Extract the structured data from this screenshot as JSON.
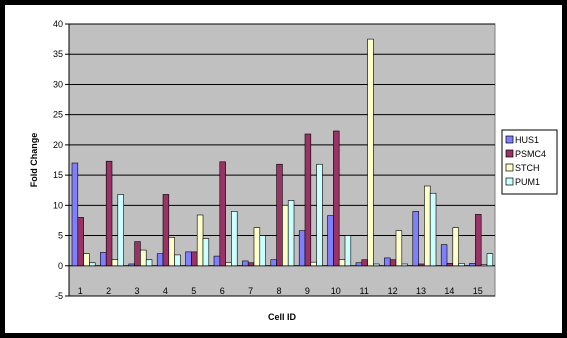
{
  "chart_data": {
    "type": "bar",
    "title": "",
    "xlabel": "Cell ID",
    "ylabel": "Fold Change",
    "ylim": [
      -5,
      40
    ],
    "yticks": [
      -5,
      0,
      5,
      10,
      15,
      20,
      25,
      30,
      35,
      40
    ],
    "grid": true,
    "legend_position": "right",
    "plot_background": "#c0c0c0",
    "categories": [
      "1",
      "2",
      "3",
      "4",
      "5",
      "6",
      "7",
      "8",
      "9",
      "10",
      "11",
      "12",
      "13",
      "14",
      "15"
    ],
    "series": [
      {
        "name": "HUS1",
        "color": "#8080ff",
        "values": [
          17,
          2.2,
          0.3,
          2.0,
          2.3,
          1.6,
          0.8,
          1.0,
          5.8,
          8.3,
          0.5,
          1.3,
          9.0,
          3.5,
          0.4
        ]
      },
      {
        "name": "PSMC4",
        "color": "#993366",
        "values": [
          8,
          17.3,
          4.0,
          11.8,
          2.3,
          17.2,
          0.5,
          16.8,
          21.8,
          22.3,
          1.0,
          1.0,
          0.3,
          0.4,
          8.5
        ]
      },
      {
        "name": "STCH",
        "color": "#ffffcc",
        "values": [
          2.0,
          1.0,
          2.6,
          4.7,
          8.4,
          0.5,
          6.3,
          10.0,
          0.6,
          1.0,
          37.5,
          5.8,
          13.2,
          6.3,
          0.2
        ]
      },
      {
        "name": "PUM1",
        "color": "#ccffff",
        "values": [
          0.5,
          11.8,
          1.0,
          1.8,
          4.5,
          9.0,
          5.0,
          10.8,
          16.8,
          5.0,
          0.3,
          0.3,
          12.0,
          0.4,
          2.0
        ]
      }
    ]
  }
}
